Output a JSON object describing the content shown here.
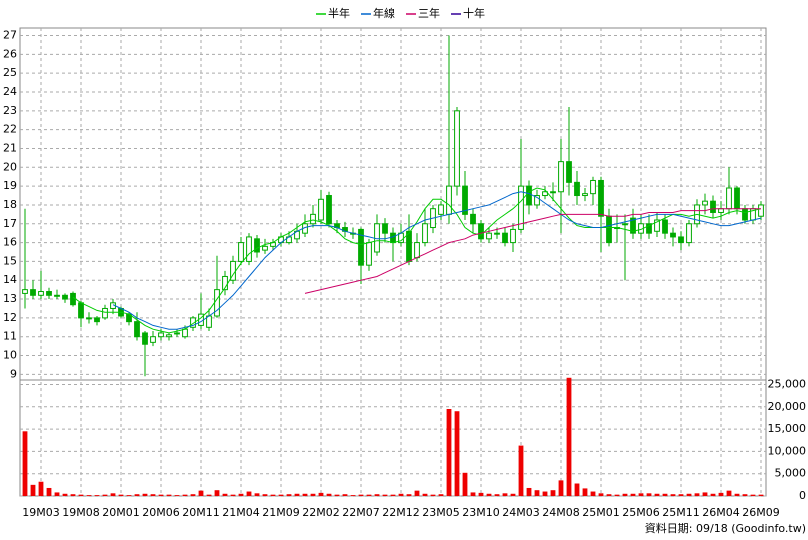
{
  "chart_data": {
    "type": "candlestick",
    "legend": [
      "半年",
      "年線",
      "三年",
      "十年"
    ],
    "footer": "資料日期: 09/18 (Goodinfo.tw)",
    "up_color": "#ffffff",
    "down_color": "#00aa00",
    "candle_edge": "#00aa00",
    "volume_color": "#ee0000",
    "grid": true,
    "categories": [
      null,
      null,
      "19M03",
      null,
      null,
      null,
      null,
      "19M08",
      null,
      null,
      null,
      null,
      "20M01",
      null,
      null,
      null,
      null,
      "20M06",
      null,
      null,
      null,
      null,
      "20M11",
      null,
      null,
      null,
      null,
      "21M04",
      null,
      null,
      null,
      null,
      "21M09",
      null,
      null,
      null,
      null,
      "22M02",
      null,
      null,
      null,
      null,
      "22M07",
      null,
      null,
      null,
      null,
      "22M12",
      null,
      null,
      null,
      null,
      "23M05",
      null,
      null,
      null,
      null,
      "23M10",
      null,
      null,
      null,
      null,
      "24M03",
      null,
      null,
      null,
      null,
      "24M08",
      null,
      null,
      null,
      null,
      "25M01",
      null,
      null,
      null,
      null,
      "25M06",
      null,
      null,
      null,
      null,
      "25M11",
      null,
      null,
      null,
      null,
      "26M04",
      null,
      null,
      null,
      null,
      "26M09"
    ],
    "open": [
      13.3,
      13.5,
      13.2,
      13.4,
      13.2,
      13.2,
      13.3,
      12.8,
      12.0,
      12.0,
      12.0,
      12.5,
      12.5,
      12.2,
      11.8,
      11.2,
      10.7,
      11.0,
      11.0,
      11.2,
      11.0,
      11.5,
      11.6,
      11.5,
      12.1,
      13.5,
      14.0,
      15.0,
      15.0,
      16.2,
      15.6,
      15.8,
      16.0,
      16.0,
      16.2,
      16.5,
      17.0,
      17.2,
      18.5,
      17.0,
      16.8,
      16.5,
      16.7,
      14.8,
      15.5,
      17.0,
      16.5,
      16.0,
      16.6,
      15.2,
      16.0,
      16.8,
      17.5,
      17.5,
      19.0,
      19.0,
      17.5,
      17.0,
      16.2,
      16.5,
      16.5,
      16.0,
      16.7,
      19.0,
      18.0,
      18.5,
      18.7,
      18.7,
      20.3,
      19.2,
      18.5,
      18.6,
      19.3,
      17.4,
      16.8,
      17.0,
      17.3,
      16.5,
      17.0,
      16.6,
      17.2,
      16.5,
      16.3,
      16.0,
      17.0,
      18.0,
      18.2,
      17.6,
      17.8,
      18.9,
      17.8,
      17.2,
      17.4
    ],
    "high": [
      17.8,
      14.0,
      14.5,
      13.6,
      13.5,
      13.3,
      13.4,
      12.9,
      12.3,
      12.1,
      12.7,
      13.0,
      12.6,
      12.3,
      12.3,
      11.3,
      11.3,
      11.4,
      11.2,
      11.4,
      11.6,
      12.1,
      13.3,
      12.5,
      15.3,
      14.5,
      15.3,
      16.3,
      16.5,
      16.4,
      16.2,
      16.2,
      16.5,
      16.6,
      17.0,
      17.5,
      18.0,
      18.8,
      18.7,
      17.2,
      17.1,
      16.8,
      16.8,
      16.2,
      17.5,
      17.3,
      16.8,
      17.0,
      17.5,
      16.5,
      17.8,
      18.0,
      18.2,
      27.0,
      23.2,
      19.8,
      17.8,
      17.2,
      16.8,
      16.8,
      16.8,
      17.0,
      21.5,
      19.3,
      18.8,
      19.0,
      19.2,
      21.5,
      23.2,
      19.8,
      18.9,
      19.5,
      19.5,
      17.8,
      17.5,
      17.5,
      17.8,
      17.5,
      17.5,
      17.6,
      17.5,
      16.8,
      16.6,
      17.2,
      18.3,
      18.6,
      18.5,
      18.2,
      20.0,
      19.0,
      18.0,
      18.0,
      18.2
    ],
    "low": [
      12.5,
      13.0,
      13.0,
      13.0,
      13.0,
      12.8,
      12.6,
      11.5,
      11.7,
      11.6,
      11.9,
      12.2,
      12.0,
      11.6,
      10.8,
      8.9,
      10.5,
      10.8,
      10.8,
      11.0,
      10.9,
      11.3,
      11.4,
      11.3,
      12.0,
      13.2,
      13.8,
      14.8,
      14.8,
      15.2,
      15.4,
      15.6,
      15.8,
      15.9,
      16.0,
      16.3,
      16.8,
      17.0,
      16.8,
      16.5,
      16.3,
      16.2,
      13.8,
      14.5,
      15.3,
      16.0,
      15.0,
      15.8,
      14.8,
      15.0,
      15.8,
      16.5,
      17.2,
      17.0,
      18.5,
      17.2,
      16.5,
      16.0,
      16.0,
      16.2,
      15.8,
      15.5,
      16.5,
      17.5,
      17.8,
      18.3,
      18.2,
      16.5,
      18.5,
      18.0,
      18.2,
      18.0,
      15.5,
      15.8,
      16.0,
      14.0,
      16.2,
      16.2,
      16.2,
      16.3,
      16.2,
      15.8,
      15.6,
      15.8,
      16.8,
      17.5,
      17.3,
      17.2,
      17.5,
      17.5,
      17.0,
      17.0,
      17.2
    ],
    "close": [
      13.5,
      13.2,
      13.4,
      13.2,
      13.2,
      13.0,
      12.7,
      12.0,
      12.0,
      11.8,
      12.5,
      12.8,
      12.1,
      11.8,
      11.0,
      10.6,
      11.0,
      11.2,
      11.1,
      11.2,
      11.4,
      12.0,
      12.2,
      12.1,
      13.5,
      14.2,
      15.0,
      16.0,
      16.3,
      15.5,
      15.8,
      16.0,
      16.3,
      16.3,
      16.6,
      17.0,
      17.5,
      18.3,
      17.0,
      16.8,
      16.6,
      16.5,
      14.8,
      16.0,
      17.0,
      16.5,
      16.0,
      16.5,
      15.0,
      16.0,
      17.0,
      17.8,
      18.0,
      19.0,
      23.0,
      17.5,
      17.0,
      16.2,
      16.5,
      16.5,
      16.0,
      16.7,
      19.0,
      18.0,
      18.5,
      18.7,
      18.7,
      20.3,
      19.2,
      18.5,
      18.6,
      19.3,
      17.4,
      16.0,
      16.8,
      17.0,
      16.5,
      17.0,
      16.5,
      17.2,
      16.5,
      16.3,
      16.0,
      17.0,
      18.0,
      18.2,
      17.6,
      17.8,
      18.9,
      17.8,
      17.2,
      17.8,
      18.0
    ],
    "volume": [
      14500,
      2500,
      3200,
      1800,
      800,
      500,
      400,
      300,
      200,
      200,
      300,
      600,
      300,
      200,
      400,
      500,
      400,
      300,
      300,
      200,
      300,
      400,
      1200,
      300,
      1300,
      500,
      300,
      500,
      1000,
      600,
      400,
      300,
      300,
      400,
      500,
      500,
      500,
      700,
      500,
      300,
      400,
      200,
      300,
      300,
      400,
      300,
      300,
      500,
      400,
      1200,
      500,
      300,
      400,
      19500,
      19000,
      5200,
      800,
      700,
      500,
      400,
      600,
      500,
      11300,
      1800,
      1300,
      1000,
      1300,
      3500,
      26500,
      2800,
      1700,
      1000,
      600,
      400,
      300,
      500,
      500,
      600,
      600,
      500,
      500,
      400,
      400,
      500,
      600,
      800,
      500,
      700,
      1200,
      500,
      400,
      300,
      300
    ],
    "series": [
      {
        "name": "半年",
        "color": "#00cc00",
        "values": [
          null,
          null,
          null,
          null,
          null,
          null,
          13.1,
          12.8,
          12.6,
          12.4,
          12.3,
          12.3,
          12.3,
          12.2,
          11.9,
          11.6,
          11.4,
          11.3,
          11.2,
          11.3,
          11.4,
          11.7,
          12.0,
          12.4,
          13.0,
          13.6,
          14.3,
          14.9,
          15.4,
          15.7,
          15.9,
          16.0,
          16.3,
          16.5,
          16.8,
          17.1,
          17.2,
          17.1,
          16.9,
          16.6,
          16.2,
          16.0,
          15.9,
          16.0,
          16.1,
          16.1,
          16.0,
          16.1,
          16.5,
          17.1,
          17.8,
          18.3,
          18.3,
          18.0,
          17.5,
          16.8,
          16.5,
          16.4,
          16.8,
          17.2,
          17.5,
          17.8,
          18.2,
          18.7,
          18.9,
          18.8,
          18.3,
          17.8,
          17.3,
          16.9,
          16.8,
          16.8,
          16.8,
          16.8,
          16.8,
          16.7,
          16.6,
          16.7,
          16.9,
          17.1,
          17.3,
          17.5,
          17.5,
          17.4,
          17.5,
          17.4,
          17.3,
          17.4,
          17.6,
          17.7,
          17.6,
          17.7,
          17.8
        ]
      },
      {
        "name": "年線",
        "color": "#0066cc",
        "values": [
          null,
          null,
          null,
          null,
          null,
          null,
          null,
          null,
          null,
          null,
          null,
          12.7,
          12.5,
          12.3,
          12.0,
          11.8,
          11.6,
          11.5,
          11.4,
          11.4,
          11.5,
          11.6,
          11.8,
          12.1,
          12.4,
          12.8,
          13.2,
          13.7,
          14.2,
          14.7,
          15.2,
          15.6,
          16.0,
          16.3,
          16.6,
          16.8,
          16.9,
          16.9,
          16.9,
          16.8,
          16.6,
          16.5,
          16.4,
          16.3,
          16.2,
          16.2,
          16.3,
          16.5,
          16.8,
          17.0,
          17.2,
          17.3,
          17.4,
          17.5,
          17.6,
          17.7,
          17.8,
          17.9,
          18.0,
          18.2,
          18.4,
          18.6,
          18.7,
          18.6,
          18.4,
          18.1,
          17.8,
          17.5,
          17.2,
          17.0,
          16.9,
          16.8,
          16.8,
          16.9,
          17.0,
          17.1,
          17.2,
          17.3,
          17.4,
          17.5,
          17.5,
          17.5,
          17.4,
          17.3,
          17.2,
          17.1,
          17.0,
          16.9,
          16.9,
          17.0,
          17.1,
          17.2,
          17.3
        ]
      },
      {
        "name": "三年",
        "color": "#cc0066",
        "values": [
          null,
          null,
          null,
          null,
          null,
          null,
          null,
          null,
          null,
          null,
          null,
          null,
          null,
          null,
          null,
          null,
          null,
          null,
          null,
          null,
          null,
          null,
          null,
          null,
          null,
          null,
          null,
          null,
          null,
          null,
          null,
          null,
          null,
          null,
          null,
          13.3,
          13.4,
          13.5,
          13.6,
          13.7,
          13.8,
          13.9,
          14.0,
          14.1,
          14.2,
          14.4,
          14.6,
          14.8,
          15.0,
          15.2,
          15.4,
          15.6,
          15.8,
          16.0,
          16.1,
          16.2,
          16.4,
          16.5,
          16.6,
          16.7,
          16.8,
          16.9,
          17.0,
          17.1,
          17.2,
          17.3,
          17.4,
          17.5,
          17.5,
          17.5,
          17.5,
          17.5,
          17.5,
          17.4,
          17.4,
          17.4,
          17.5,
          17.5,
          17.6,
          17.6,
          17.6,
          17.6,
          17.7,
          17.7,
          17.7,
          17.7,
          17.8,
          17.8,
          17.8,
          17.8,
          17.8,
          17.8,
          17.8
        ]
      },
      {
        "name": "十年",
        "color": "#330099",
        "values": [
          null,
          null,
          null,
          null,
          null,
          null,
          null,
          null,
          null,
          null,
          null,
          null,
          null,
          null,
          null,
          null,
          null,
          null,
          null,
          null,
          null,
          null,
          null,
          null,
          null,
          null,
          null,
          null,
          null,
          null,
          null,
          null,
          null,
          null,
          null,
          null,
          null,
          null,
          null,
          null,
          null,
          null,
          null,
          null,
          null,
          null,
          null,
          null,
          null,
          null,
          null,
          null,
          null,
          null,
          null,
          null,
          null,
          null,
          null,
          null,
          null,
          null,
          null,
          null,
          null,
          null,
          null,
          null,
          null,
          null,
          null,
          null,
          null,
          null,
          null,
          null,
          null,
          null,
          null,
          null,
          null,
          null,
          null,
          null,
          null,
          null,
          null,
          null,
          null,
          null,
          null,
          null,
          null
        ]
      }
    ],
    "ylim": [
      8.7,
      27.4
    ],
    "yticks": [
      9,
      10,
      11,
      12,
      13,
      14,
      15,
      16,
      17,
      18,
      19,
      20,
      21,
      22,
      23,
      24,
      25,
      26,
      27
    ],
    "y2lim": [
      0,
      26000
    ],
    "y2ticks": [
      0,
      {
        "value": 5000,
        "label": "5,000"
      },
      {
        "value": 10000,
        "label": "10,000"
      },
      {
        "value": 15000,
        "label": "15,000"
      },
      {
        "value": 20000,
        "label": "20,000"
      },
      {
        "value": 25000,
        "label": "25,000"
      }
    ]
  }
}
